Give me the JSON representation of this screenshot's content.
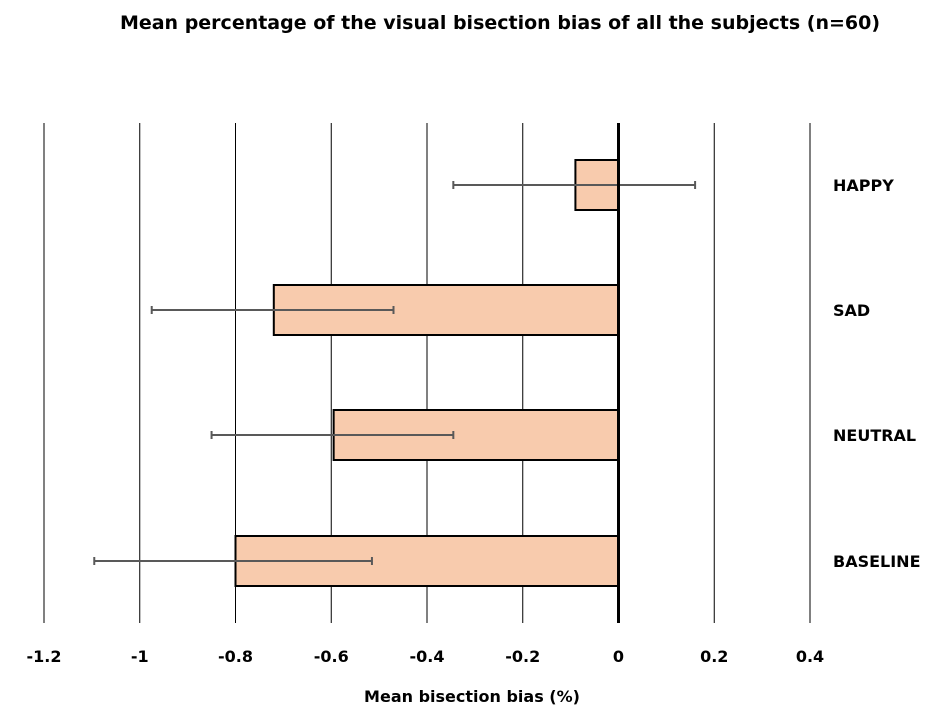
{
  "chart_data": {
    "type": "bar",
    "orientation": "horizontal",
    "title": "Mean percentage of the visual bisection bias of all the subjects (n=60)",
    "xlabel": "Mean bisection bias (%)",
    "ylabel": "",
    "categories": [
      "HAPPY",
      "SAD",
      "NEUTRAL",
      "BASELINE"
    ],
    "values": [
      -0.09,
      -0.72,
      -0.595,
      -0.8
    ],
    "error_bars": [
      {
        "low": -0.345,
        "high": 0.16
      },
      {
        "low": -0.975,
        "high": -0.47
      },
      {
        "low": -0.85,
        "high": -0.345
      },
      {
        "low": -1.095,
        "high": -0.515
      }
    ],
    "xlim": [
      -1.2,
      0.4
    ],
    "xticks": [
      "-1.2",
      "-1",
      "-0.8",
      "-0.6",
      "-0.4",
      "-0.2",
      "0",
      "0.2",
      "0.4"
    ],
    "xtick_values": [
      -1.2,
      -1.0,
      -0.8,
      -0.6,
      -0.4,
      -0.2,
      0,
      0.2,
      0.4
    ],
    "grid": "vertical",
    "bar_color": "#f8cbad",
    "bar_edge_color": "#000000",
    "error_color": "#595959",
    "category_label_position": "right"
  }
}
